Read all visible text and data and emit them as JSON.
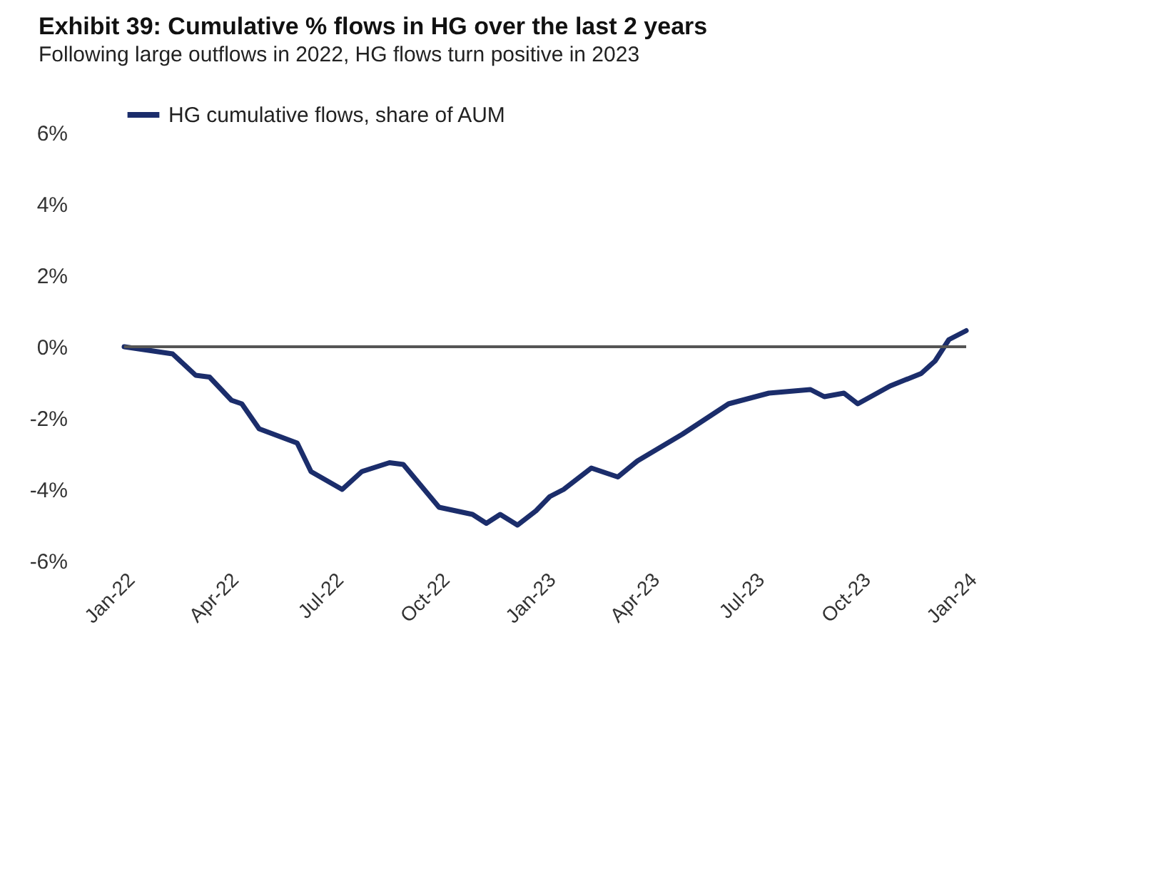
{
  "chart_data": {
    "type": "line",
    "title": "Exhibit 39: Cumulative % flows in HG over the last 2 years",
    "subtitle": "Following large outflows in 2022, HG flows turn positive in 2023",
    "x": [
      "2022-01-01",
      "2022-02-12",
      "2022-03-04",
      "2022-03-16",
      "2022-04-04",
      "2022-04-13",
      "2022-04-28",
      "2022-05-31",
      "2022-06-12",
      "2022-07-09",
      "2022-07-26",
      "2022-08-19",
      "2022-08-31",
      "2022-10-01",
      "2022-10-30",
      "2022-11-11",
      "2022-11-23",
      "2022-12-08",
      "2022-12-24",
      "2023-01-05",
      "2023-01-17",
      "2023-02-10",
      "2023-03-05",
      "2023-03-22",
      "2023-04-30",
      "2023-06-09",
      "2023-07-14",
      "2023-08-19",
      "2023-08-31",
      "2023-09-17",
      "2023-09-29",
      "2023-10-27",
      "2023-11-23",
      "2023-12-05",
      "2023-12-17",
      "2024-01-01"
    ],
    "series": [
      {
        "name": "HG cumulative flows, share of AUM",
        "color": "#1b2d6b",
        "values": [
          0,
          -0.2,
          -0.8,
          -0.85,
          -1.5,
          -1.6,
          -2.3,
          -2.7,
          -3.5,
          -4.0,
          -3.5,
          -3.25,
          -3.3,
          -4.5,
          -4.7,
          -4.95,
          -4.7,
          -5.0,
          -4.6,
          -4.2,
          -4.0,
          -3.4,
          -3.65,
          -3.2,
          -2.45,
          -1.6,
          -1.3,
          -1.2,
          -1.4,
          -1.3,
          -1.6,
          -1.1,
          -0.75,
          -0.4,
          0.2,
          0.45
        ]
      }
    ],
    "ylim": [
      -6,
      6
    ],
    "yticks": [
      {
        "value": 6,
        "label": "6%"
      },
      {
        "value": 4,
        "label": "4%"
      },
      {
        "value": 2,
        "label": "2%"
      },
      {
        "value": 0,
        "label": "0%"
      },
      {
        "value": -2,
        "label": "-2%"
      },
      {
        "value": -4,
        "label": "-4%"
      },
      {
        "value": -6,
        "label": "-6%"
      }
    ],
    "xlim": [
      "2022-01-01",
      "2024-01-01"
    ],
    "xticks": [
      {
        "value": "2022-01-01",
        "label": "Jan-22"
      },
      {
        "value": "2022-04-01",
        "label": "Apr-22"
      },
      {
        "value": "2022-07-01",
        "label": "Jul-22"
      },
      {
        "value": "2022-10-01",
        "label": "Oct-22"
      },
      {
        "value": "2023-01-01",
        "label": "Jan-23"
      },
      {
        "value": "2023-04-01",
        "label": "Apr-23"
      },
      {
        "value": "2023-07-01",
        "label": "Jul-23"
      },
      {
        "value": "2023-10-01",
        "label": "Oct-23"
      },
      {
        "value": "2024-01-01",
        "label": "Jan-24"
      }
    ],
    "ref_lines": [
      {
        "axis": "y",
        "value": 0,
        "color": "#555555"
      }
    ],
    "legend": "top",
    "grid": false,
    "marker": "none",
    "line_style": "solid"
  }
}
